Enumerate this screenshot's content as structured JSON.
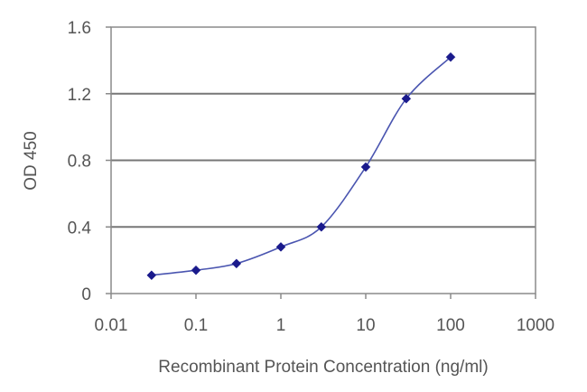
{
  "chart_data": {
    "type": "line",
    "title": "",
    "xlabel": "Recombinant Protein Concentration (ng/ml)",
    "ylabel": "OD 450",
    "x_scale": "log",
    "xlim": [
      0.01,
      1000
    ],
    "ylim": [
      0,
      1.6
    ],
    "x_ticks": [
      0.01,
      0.1,
      1,
      10,
      100,
      1000
    ],
    "x_tick_labels": [
      "0.01",
      "0.1",
      "1",
      "10",
      "100",
      "1000"
    ],
    "y_ticks": [
      0,
      0.4,
      0.8,
      1.2,
      1.6
    ],
    "y_tick_labels": [
      "0",
      "0.4",
      "0.8",
      "1.2",
      "1.6"
    ],
    "grid": "horizontal",
    "legend": "none",
    "series": [
      {
        "x": [
          0.03,
          0.1,
          0.3,
          1,
          3,
          10,
          30,
          100
        ],
        "y": [
          0.11,
          0.14,
          0.18,
          0.28,
          0.4,
          0.76,
          1.17,
          1.42
        ],
        "color": "#1a1a8c",
        "marker": "diamond"
      }
    ]
  }
}
